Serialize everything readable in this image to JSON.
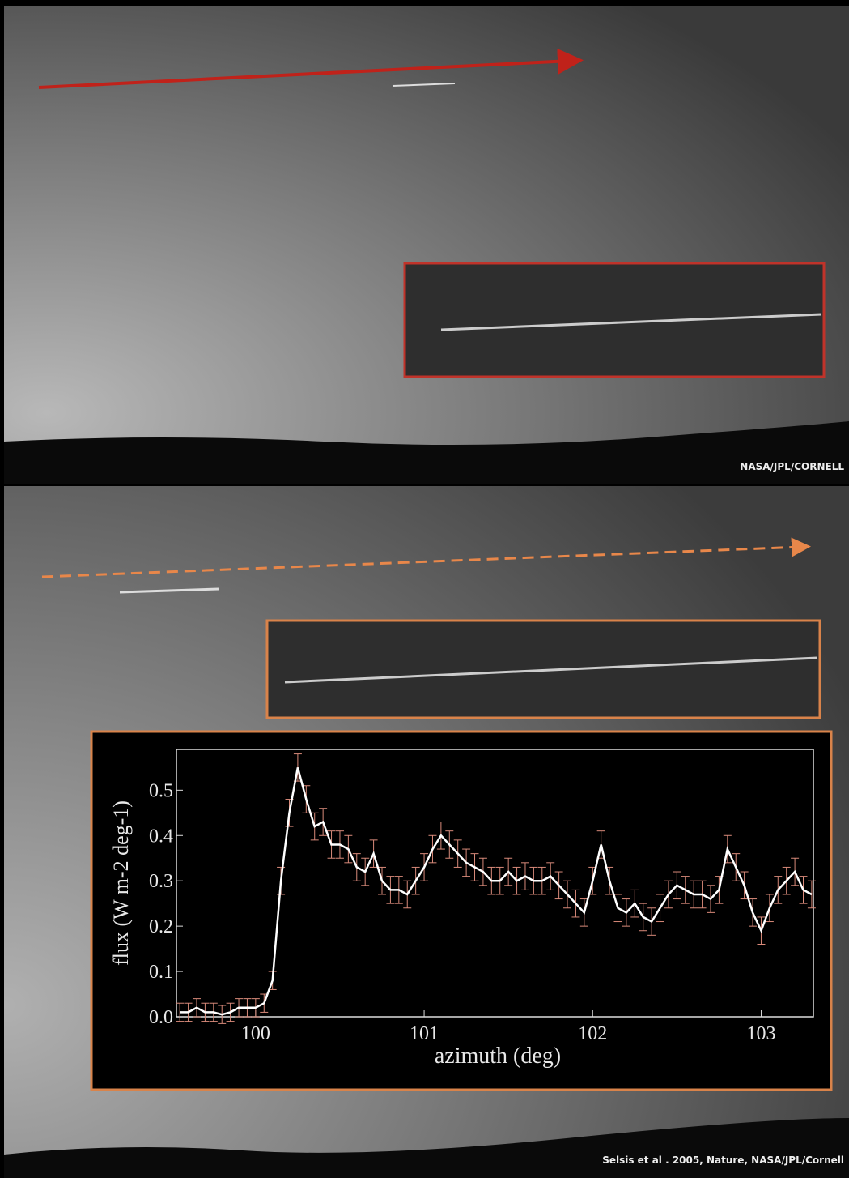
{
  "chart_data": {
    "type": "line",
    "x_label": "azimuth (deg)",
    "y_label": "flux (W m-2 deg-1)",
    "x": [
      99.55,
      99.6,
      99.65,
      99.7,
      99.75,
      99.8,
      99.85,
      99.9,
      99.95,
      100.0,
      100.05,
      100.1,
      100.15,
      100.2,
      100.25,
      100.3,
      100.35,
      100.4,
      100.45,
      100.5,
      100.55,
      100.6,
      100.65,
      100.7,
      100.75,
      100.8,
      100.85,
      100.9,
      100.95,
      101.0,
      101.05,
      101.1,
      101.15,
      101.2,
      101.25,
      101.3,
      101.35,
      101.4,
      101.45,
      101.5,
      101.55,
      101.6,
      101.65,
      101.7,
      101.75,
      101.8,
      101.85,
      101.9,
      101.95,
      102.0,
      102.05,
      102.1,
      102.15,
      102.2,
      102.25,
      102.3,
      102.35,
      102.4,
      102.45,
      102.5,
      102.55,
      102.6,
      102.65,
      102.7,
      102.75,
      102.8,
      102.85,
      102.9,
      102.95,
      103.0,
      103.05,
      103.1,
      103.15,
      103.2,
      103.25,
      103.3
    ],
    "series": [
      {
        "color": "#ffffff",
        "error_color": "#d98a7a",
        "values": [
          0.01,
          0.01,
          0.02,
          0.01,
          0.01,
          0.005,
          0.01,
          0.02,
          0.02,
          0.02,
          0.03,
          0.08,
          0.3,
          0.45,
          0.55,
          0.48,
          0.42,
          0.43,
          0.38,
          0.38,
          0.37,
          0.33,
          0.32,
          0.36,
          0.3,
          0.28,
          0.28,
          0.27,
          0.3,
          0.33,
          0.37,
          0.4,
          0.38,
          0.36,
          0.34,
          0.33,
          0.32,
          0.3,
          0.3,
          0.32,
          0.3,
          0.31,
          0.3,
          0.3,
          0.31,
          0.29,
          0.27,
          0.25,
          0.23,
          0.3,
          0.38,
          0.3,
          0.24,
          0.23,
          0.25,
          0.22,
          0.21,
          0.24,
          0.27,
          0.29,
          0.28,
          0.27,
          0.27,
          0.26,
          0.28,
          0.37,
          0.33,
          0.29,
          0.23,
          0.19,
          0.24,
          0.28,
          0.3,
          0.32,
          0.28,
          0.27
        ],
        "errors": [
          0.02,
          0.02,
          0.02,
          0.02,
          0.02,
          0.02,
          0.02,
          0.02,
          0.02,
          0.02,
          0.02,
          0.02,
          0.03,
          0.03,
          0.03,
          0.03,
          0.03,
          0.03,
          0.03,
          0.03,
          0.03,
          0.03,
          0.03,
          0.03,
          0.03,
          0.03,
          0.03,
          0.03,
          0.03,
          0.03,
          0.03,
          0.03,
          0.03,
          0.03,
          0.03,
          0.03,
          0.03,
          0.03,
          0.03,
          0.03,
          0.03,
          0.03,
          0.03,
          0.03,
          0.03,
          0.03,
          0.03,
          0.03,
          0.03,
          0.03,
          0.03,
          0.03,
          0.03,
          0.03,
          0.03,
          0.03,
          0.03,
          0.03,
          0.03,
          0.03,
          0.03,
          0.03,
          0.03,
          0.03,
          0.03,
          0.03,
          0.03,
          0.03,
          0.03,
          0.03,
          0.03,
          0.03,
          0.03,
          0.03,
          0.03,
          0.03
        ]
      }
    ],
    "xlim": [
      99.53,
      103.31
    ],
    "xticks": [
      100,
      101,
      102,
      103
    ],
    "ylim": [
      0,
      0.59
    ],
    "yticks": [
      {
        "value": 0,
        "label": "0.0"
      },
      {
        "value": 0.1,
        "label": "0.1"
      },
      {
        "value": 0.2,
        "label": "0.2"
      },
      {
        "value": 0.3,
        "label": "0.3"
      },
      {
        "value": 0.4,
        "label": "0.4"
      },
      {
        "value": 0.5,
        "label": "0.5"
      }
    ]
  },
  "credits": {
    "top": "NASA/JPL/CORNELL",
    "bottom": "Selsis et al . 2005, Nature, NASA/JPL/Cornell"
  }
}
